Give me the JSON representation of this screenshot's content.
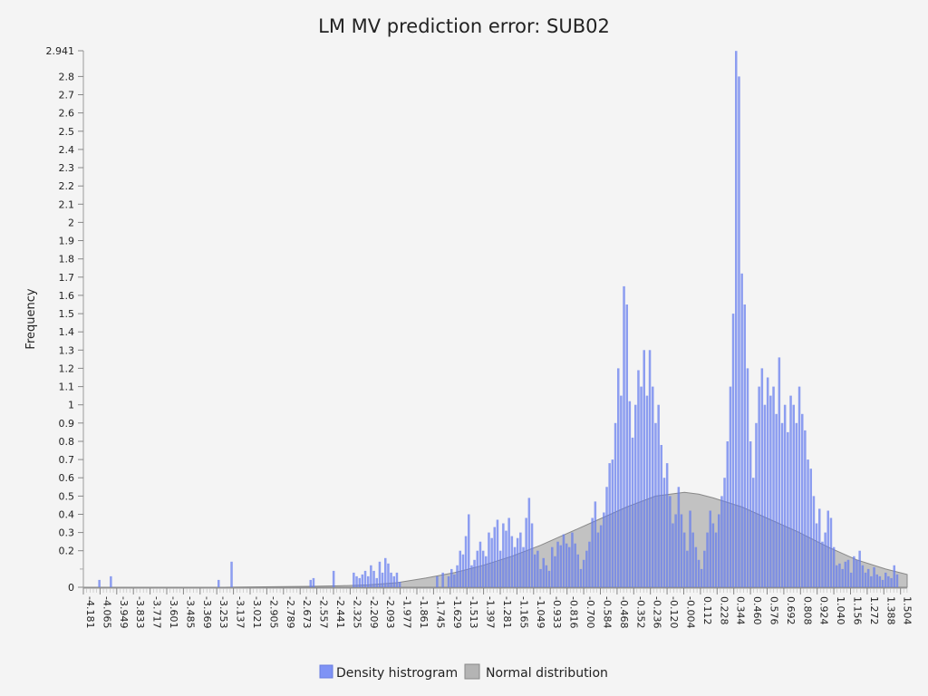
{
  "chart_data": {
    "type": "bar",
    "title": "LM MV prediction error: SUB02",
    "ylabel": "Frequency",
    "xlabel": "",
    "xlim": [
      -4.181,
      1.55
    ],
    "ylim": [
      0,
      2.941
    ],
    "x_tick_labels": [
      "-4.181",
      "-4.065",
      "-3.949",
      "-3.833",
      "-3.717",
      "-3.601",
      "-3.485",
      "-3.369",
      "-3.253",
      "-3.137",
      "-3.021",
      "-2.905",
      "-2.789",
      "-2.673",
      "-2.557",
      "-2.441",
      "-2.325",
      "-2.209",
      "-2.093",
      "-1.977",
      "-1.861",
      "-1.745",
      "-1.629",
      "-1.513",
      "-1.397",
      "-1.281",
      "-1.165",
      "-1.049",
      "-0.933",
      "-0.816",
      "-0.700",
      "-0.584",
      "-0.468",
      "-0.352",
      "-0.236",
      "-0.120",
      "-0.004",
      "0.112",
      "0.228",
      "0.344",
      "0.460",
      "0.576",
      "0.692",
      "0.808",
      "0.924",
      "1.040",
      "1.156",
      "1.272",
      "1.388",
      "1.504"
    ],
    "y_ticks": [
      0,
      0.2,
      0.3,
      0.4,
      0.5,
      0.6,
      0.7,
      0.8,
      0.9,
      1,
      1.1,
      1.2,
      1.3,
      1.4,
      1.5,
      1.6,
      1.7,
      1.8,
      1.9,
      2,
      2.1,
      2.2,
      2.3,
      2.4,
      2.5,
      2.6,
      2.7,
      2.8,
      2.941
    ],
    "y_tick_labels": [
      "0",
      "0.2",
      "0.3",
      "0.4",
      "0.5",
      "0.6",
      "0.7",
      "0.8",
      "0.9",
      "1",
      "1.1",
      "1.2",
      "1.3",
      "1.4",
      "1.5",
      "1.6",
      "1.7",
      "1.8",
      "1.9",
      "2",
      "2.1",
      "2.2",
      "2.3",
      "2.4",
      "2.5",
      "2.6",
      "2.7",
      "2.8",
      "2.941"
    ],
    "histogram": {
      "name": "Density histrogram",
      "color": "#7f93f5",
      "bins": [
        [
          -4.07,
          0.04
        ],
        [
          -3.99,
          0.06
        ],
        [
          -3.24,
          0.04
        ],
        [
          -3.15,
          0.14
        ],
        [
          -2.6,
          0.04
        ],
        [
          -2.58,
          0.05
        ],
        [
          -2.44,
          0.09
        ],
        [
          -2.3,
          0.08
        ],
        [
          -2.28,
          0.06
        ],
        [
          -2.26,
          0.05
        ],
        [
          -2.24,
          0.07
        ],
        [
          -2.22,
          0.09
        ],
        [
          -2.2,
          0.06
        ],
        [
          -2.18,
          0.12
        ],
        [
          -2.16,
          0.09
        ],
        [
          -2.14,
          0.05
        ],
        [
          -2.12,
          0.14
        ],
        [
          -2.1,
          0.08
        ],
        [
          -2.08,
          0.16
        ],
        [
          -2.06,
          0.13
        ],
        [
          -2.04,
          0.08
        ],
        [
          -2.02,
          0.06
        ],
        [
          -2.0,
          0.08
        ],
        [
          -1.98,
          0.03
        ],
        [
          -1.72,
          0.06
        ],
        [
          -1.68,
          0.08
        ],
        [
          -1.64,
          0.06
        ],
        [
          -1.62,
          0.1
        ],
        [
          -1.6,
          0.07
        ],
        [
          -1.58,
          0.12
        ],
        [
          -1.56,
          0.2
        ],
        [
          -1.54,
          0.18
        ],
        [
          -1.52,
          0.28
        ],
        [
          -1.5,
          0.4
        ],
        [
          -1.48,
          0.12
        ],
        [
          -1.46,
          0.15
        ],
        [
          -1.44,
          0.2
        ],
        [
          -1.42,
          0.25
        ],
        [
          -1.4,
          0.2
        ],
        [
          -1.38,
          0.17
        ],
        [
          -1.36,
          0.3
        ],
        [
          -1.34,
          0.27
        ],
        [
          -1.32,
          0.33
        ],
        [
          -1.3,
          0.37
        ],
        [
          -1.28,
          0.2
        ],
        [
          -1.26,
          0.35
        ],
        [
          -1.24,
          0.31
        ],
        [
          -1.22,
          0.38
        ],
        [
          -1.2,
          0.28
        ],
        [
          -1.18,
          0.22
        ],
        [
          -1.16,
          0.27
        ],
        [
          -1.14,
          0.3
        ],
        [
          -1.12,
          0.22
        ],
        [
          -1.1,
          0.38
        ],
        [
          -1.08,
          0.49
        ],
        [
          -1.06,
          0.35
        ],
        [
          -1.04,
          0.18
        ],
        [
          -1.02,
          0.2
        ],
        [
          -1.0,
          0.1
        ],
        [
          -0.98,
          0.16
        ],
        [
          -0.96,
          0.12
        ],
        [
          -0.94,
          0.09
        ],
        [
          -0.92,
          0.22
        ],
        [
          -0.9,
          0.17
        ],
        [
          -0.88,
          0.25
        ],
        [
          -0.86,
          0.23
        ],
        [
          -0.84,
          0.29
        ],
        [
          -0.82,
          0.24
        ],
        [
          -0.8,
          0.22
        ],
        [
          -0.78,
          0.3
        ],
        [
          -0.76,
          0.24
        ],
        [
          -0.74,
          0.18
        ],
        [
          -0.72,
          0.1
        ],
        [
          -0.7,
          0.15
        ],
        [
          -0.68,
          0.2
        ],
        [
          -0.66,
          0.25
        ],
        [
          -0.64,
          0.38
        ],
        [
          -0.62,
          0.47
        ],
        [
          -0.6,
          0.3
        ],
        [
          -0.58,
          0.34
        ],
        [
          -0.56,
          0.41
        ],
        [
          -0.54,
          0.55
        ],
        [
          -0.52,
          0.68
        ],
        [
          -0.5,
          0.7
        ],
        [
          -0.48,
          0.9
        ],
        [
          -0.46,
          1.2
        ],
        [
          -0.44,
          1.05
        ],
        [
          -0.42,
          1.65
        ],
        [
          -0.4,
          1.55
        ],
        [
          -0.38,
          1.02
        ],
        [
          -0.36,
          0.82
        ],
        [
          -0.34,
          1.0
        ],
        [
          -0.32,
          1.19
        ],
        [
          -0.3,
          1.1
        ],
        [
          -0.28,
          1.3
        ],
        [
          -0.26,
          1.05
        ],
        [
          -0.24,
          1.3
        ],
        [
          -0.22,
          1.1
        ],
        [
          -0.2,
          0.9
        ],
        [
          -0.18,
          1.0
        ],
        [
          -0.16,
          0.78
        ],
        [
          -0.14,
          0.6
        ],
        [
          -0.12,
          0.68
        ],
        [
          -0.1,
          0.5
        ],
        [
          -0.08,
          0.35
        ],
        [
          -0.06,
          0.4
        ],
        [
          -0.04,
          0.55
        ],
        [
          -0.02,
          0.4
        ],
        [
          0.0,
          0.3
        ],
        [
          0.02,
          0.2
        ],
        [
          0.04,
          0.42
        ],
        [
          0.06,
          0.3
        ],
        [
          0.08,
          0.22
        ],
        [
          0.1,
          0.15
        ],
        [
          0.12,
          0.1
        ],
        [
          0.14,
          0.2
        ],
        [
          0.16,
          0.3
        ],
        [
          0.18,
          0.42
        ],
        [
          0.2,
          0.35
        ],
        [
          0.22,
          0.3
        ],
        [
          0.24,
          0.4
        ],
        [
          0.26,
          0.5
        ],
        [
          0.28,
          0.6
        ],
        [
          0.3,
          0.8
        ],
        [
          0.32,
          1.1
        ],
        [
          0.34,
          1.5
        ],
        [
          0.36,
          2.94
        ],
        [
          0.38,
          2.8
        ],
        [
          0.4,
          1.72
        ],
        [
          0.42,
          1.55
        ],
        [
          0.44,
          1.2
        ],
        [
          0.46,
          0.8
        ],
        [
          0.48,
          0.6
        ],
        [
          0.5,
          0.9
        ],
        [
          0.52,
          1.1
        ],
        [
          0.54,
          1.2
        ],
        [
          0.56,
          1.0
        ],
        [
          0.58,
          1.15
        ],
        [
          0.6,
          1.05
        ],
        [
          0.62,
          1.1
        ],
        [
          0.64,
          0.95
        ],
        [
          0.66,
          1.26
        ],
        [
          0.68,
          0.9
        ],
        [
          0.7,
          1.0
        ],
        [
          0.72,
          0.85
        ],
        [
          0.74,
          1.05
        ],
        [
          0.76,
          1.0
        ],
        [
          0.78,
          0.9
        ],
        [
          0.8,
          1.1
        ],
        [
          0.82,
          0.95
        ],
        [
          0.84,
          0.86
        ],
        [
          0.86,
          0.7
        ],
        [
          0.88,
          0.65
        ],
        [
          0.9,
          0.5
        ],
        [
          0.92,
          0.35
        ],
        [
          0.94,
          0.43
        ],
        [
          0.96,
          0.25
        ],
        [
          0.98,
          0.3
        ],
        [
          1.0,
          0.42
        ],
        [
          1.02,
          0.38
        ],
        [
          1.04,
          0.22
        ],
        [
          1.06,
          0.12
        ],
        [
          1.08,
          0.13
        ],
        [
          1.1,
          0.1
        ],
        [
          1.12,
          0.14
        ],
        [
          1.14,
          0.15
        ],
        [
          1.16,
          0.08
        ],
        [
          1.18,
          0.17
        ],
        [
          1.2,
          0.15
        ],
        [
          1.22,
          0.2
        ],
        [
          1.24,
          0.12
        ],
        [
          1.26,
          0.08
        ],
        [
          1.28,
          0.1
        ],
        [
          1.3,
          0.06
        ],
        [
          1.32,
          0.11
        ],
        [
          1.34,
          0.07
        ],
        [
          1.36,
          0.06
        ],
        [
          1.38,
          0.04
        ],
        [
          1.4,
          0.08
        ],
        [
          1.42,
          0.06
        ],
        [
          1.44,
          0.05
        ],
        [
          1.46,
          0.12
        ],
        [
          1.48,
          0.07
        ]
      ]
    },
    "normal": {
      "name": "Normal distribution",
      "color": "#b4b4b4",
      "points": [
        [
          -4.181,
          0.0
        ],
        [
          -3.2,
          0.0
        ],
        [
          -2.6,
          0.005
        ],
        [
          -2.4,
          0.008
        ],
        [
          -2.2,
          0.013
        ],
        [
          -2.0,
          0.025
        ],
        [
          -1.8,
          0.05
        ],
        [
          -1.6,
          0.08
        ],
        [
          -1.4,
          0.12
        ],
        [
          -1.2,
          0.17
        ],
        [
          -1.0,
          0.23
        ],
        [
          -0.8,
          0.3
        ],
        [
          -0.6,
          0.37
        ],
        [
          -0.4,
          0.44
        ],
        [
          -0.2,
          0.5
        ],
        [
          0.0,
          0.52
        ],
        [
          0.1,
          0.51
        ],
        [
          0.2,
          0.49
        ],
        [
          0.4,
          0.44
        ],
        [
          0.6,
          0.37
        ],
        [
          0.8,
          0.3
        ],
        [
          1.0,
          0.22
        ],
        [
          1.2,
          0.15
        ],
        [
          1.4,
          0.1
        ],
        [
          1.55,
          0.07
        ]
      ]
    },
    "legend": [
      "Density histrogram",
      "Normal distribution"
    ],
    "legend_position": "bottom"
  }
}
